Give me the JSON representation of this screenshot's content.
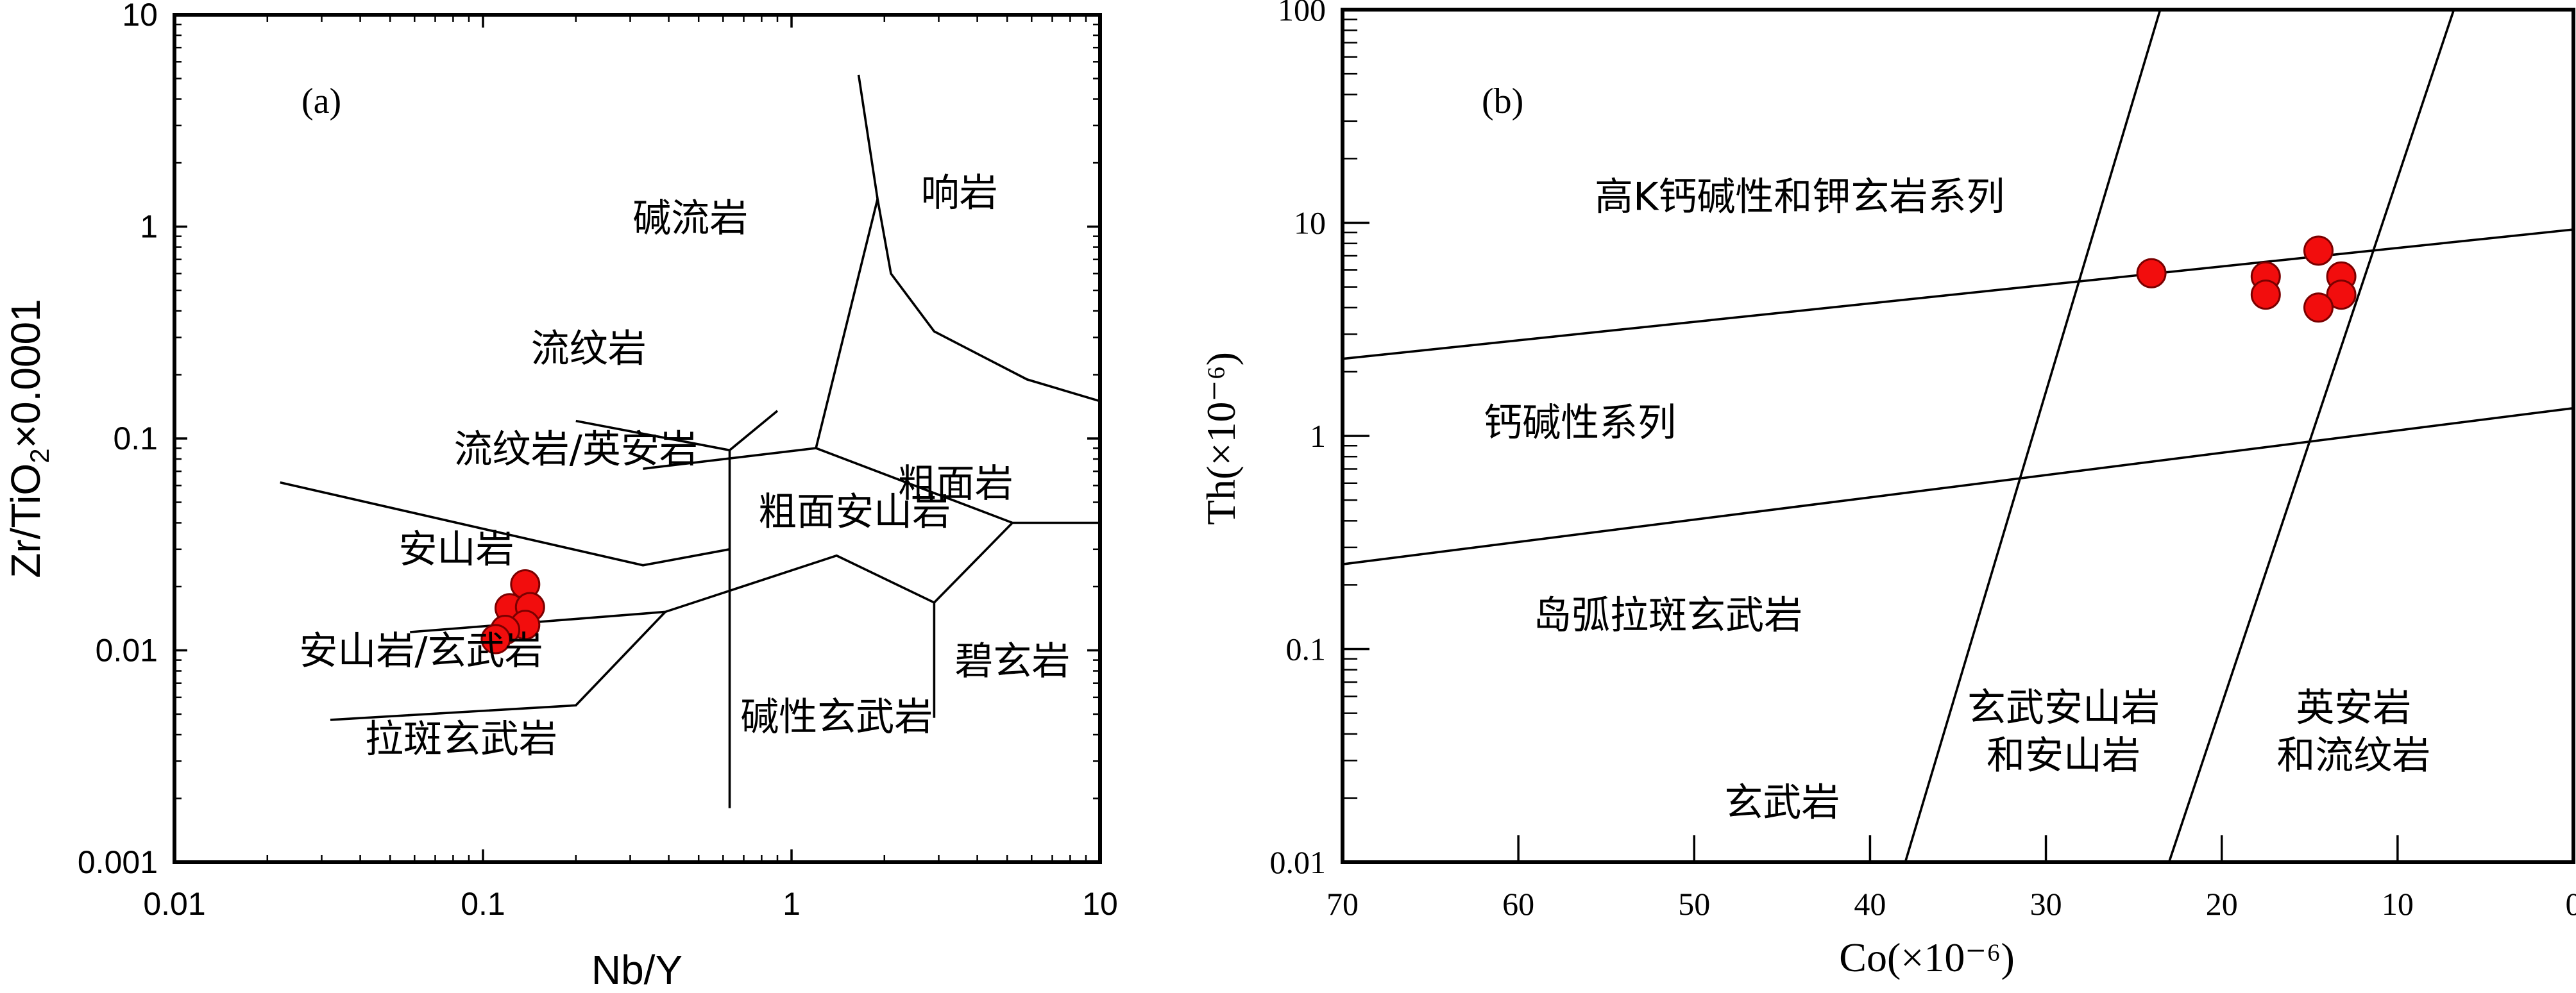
{
  "chart_data": [
    {
      "type": "scatter",
      "panel_label": "(a)",
      "xlabel": "Nb/Y",
      "ylabel_parts": [
        "Zr/TiO",
        "2",
        "×0.0001"
      ],
      "xscale": "log",
      "yscale": "log",
      "xlim": [
        0.01,
        10
      ],
      "ylim": [
        0.001,
        10
      ],
      "x_ticks": [
        0.01,
        0.1,
        1,
        10
      ],
      "x_tick_labels": [
        "0.01",
        "0.1",
        "1",
        "10"
      ],
      "y_ticks": [
        0.001,
        0.01,
        0.1,
        1,
        10
      ],
      "y_tick_labels": [
        "0.001",
        "0.01",
        "0.1",
        "1",
        "10"
      ],
      "field_boundaries": [
        [
          [
            1.65,
            5.2
          ],
          [
            1.9,
            1.35
          ],
          [
            2.1,
            0.6
          ],
          [
            2.9,
            0.32
          ],
          [
            5.8,
            0.19
          ],
          [
            10,
            0.15
          ]
        ],
        [
          [
            1.9,
            1.35
          ],
          [
            1.2,
            0.09
          ],
          [
            0.33,
            0.072
          ]
        ],
        [
          [
            1.2,
            0.09
          ],
          [
            5.2,
            0.04
          ],
          [
            10,
            0.04
          ]
        ],
        [
          [
            0.9,
            0.135
          ],
          [
            0.63,
            0.088
          ],
          [
            0.2,
            0.121
          ]
        ],
        [
          [
            0.022,
            0.062
          ],
          [
            0.33,
            0.0252
          ],
          [
            0.63,
            0.03
          ]
        ],
        [
          [
            0.63,
            0.088
          ],
          [
            0.63,
            0.0018
          ]
        ],
        [
          [
            0.058,
            0.0122
          ],
          [
            0.39,
            0.0152
          ],
          [
            1.4,
            0.028
          ],
          [
            2.9,
            0.0168
          ],
          [
            5.2,
            0.04
          ]
        ],
        [
          [
            0.032,
            0.0047
          ],
          [
            0.2,
            0.0055
          ],
          [
            0.39,
            0.0152
          ]
        ],
        [
          [
            2.9,
            0.0168
          ],
          [
            2.9,
            0.0048
          ]
        ]
      ],
      "field_labels": [
        {
          "text": "碱流岩",
          "x": 0.47,
          "y": 0.95
        },
        {
          "text": "响岩",
          "x": 3.5,
          "y": 1.25
        },
        {
          "text": "流纹岩",
          "x": 0.22,
          "y": 0.23
        },
        {
          "text": "粗面岩",
          "x": 3.4,
          "y": 0.053
        },
        {
          "text": "流纹岩/英安岩",
          "x": 0.2,
          "y": 0.077
        },
        {
          "text": "粗面安山岩",
          "x": 1.6,
          "y": 0.039
        },
        {
          "text": "安山岩",
          "x": 0.082,
          "y": 0.026
        },
        {
          "text": "安山岩/玄武岩",
          "x": 0.063,
          "y": 0.0086
        },
        {
          "text": "碧玄岩",
          "x": 5.2,
          "y": 0.0077
        },
        {
          "text": "碱性玄武岩",
          "x": 1.4,
          "y": 0.0042
        },
        {
          "text": "拉斑玄武岩",
          "x": 0.085,
          "y": 0.0033
        }
      ],
      "points": [
        {
          "x": 0.137,
          "y": 0.0205
        },
        {
          "x": 0.122,
          "y": 0.0158
        },
        {
          "x": 0.142,
          "y": 0.016
        },
        {
          "x": 0.137,
          "y": 0.0132
        },
        {
          "x": 0.118,
          "y": 0.0125
        },
        {
          "x": 0.11,
          "y": 0.0113
        }
      ]
    },
    {
      "type": "scatter",
      "panel_label": "(b)",
      "xlabel": "Co(×10⁻⁶)",
      "ylabel": "Th(×10⁻⁶)",
      "xscale": "linear",
      "yscale": "log",
      "xlim": [
        70,
        0
      ],
      "ylim": [
        0.01,
        100
      ],
      "x_ticks": [
        70,
        60,
        50,
        40,
        30,
        20,
        10,
        0
      ],
      "x_tick_labels": [
        "70",
        "60",
        "50",
        "40",
        "30",
        "20",
        "10",
        "0"
      ],
      "y_ticks": [
        0.01,
        0.1,
        1,
        10,
        100
      ],
      "y_tick_labels": [
        "0.01",
        "0.1",
        "1",
        "10",
        "100"
      ],
      "field_boundaries": [
        [
          [
            70,
            2.3
          ],
          [
            0,
            9.3
          ]
        ],
        [
          [
            70,
            0.25
          ],
          [
            0,
            1.35
          ]
        ],
        [
          [
            38,
            0.01
          ],
          [
            23.5,
            100
          ]
        ],
        [
          [
            23,
            0.01
          ],
          [
            6.8,
            100
          ]
        ]
      ],
      "field_labels": [
        {
          "text": "高K钙碱性和钾玄岩系列",
          "x": 44,
          "y": 11.5,
          "anchor": "middle"
        },
        {
          "text": "钙碱性系列",
          "x": 56.5,
          "y": 1.0,
          "anchor": "middle"
        },
        {
          "text": "岛弧拉斑玄武岩",
          "x": 51.5,
          "y": 0.125,
          "anchor": "middle"
        },
        {
          "text": "玄武岩",
          "x": 45,
          "y": 0.0165,
          "anchor": "middle"
        },
        {
          "text": "玄武安山岩",
          "x": 29,
          "y": 0.046,
          "anchor": "middle"
        },
        {
          "text": "和安山岩",
          "x": 29,
          "y": 0.0275,
          "anchor": "middle"
        },
        {
          "text": "英安岩",
          "x": 12.5,
          "y": 0.046,
          "anchor": "middle"
        },
        {
          "text": "和流纹岩",
          "x": 12.5,
          "y": 0.0275,
          "anchor": "middle"
        }
      ],
      "points": [
        {
          "x": 24,
          "y": 5.8
        },
        {
          "x": 17.5,
          "y": 5.6
        },
        {
          "x": 17.5,
          "y": 4.6
        },
        {
          "x": 14.5,
          "y": 7.4
        },
        {
          "x": 13.2,
          "y": 5.6
        },
        {
          "x": 13.2,
          "y": 4.6
        },
        {
          "x": 14.5,
          "y": 4.0
        }
      ]
    }
  ]
}
